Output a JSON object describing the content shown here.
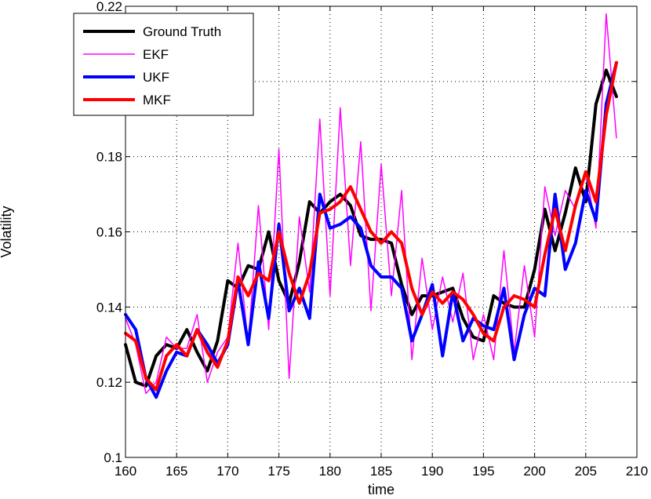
{
  "chart_data": {
    "type": "line",
    "title": "",
    "xlabel": "time",
    "ylabel": "Volatility",
    "xlim": [
      160,
      210
    ],
    "ylim": [
      0.1,
      0.22
    ],
    "xticks": [
      160,
      165,
      170,
      175,
      180,
      185,
      190,
      195,
      200,
      205,
      210
    ],
    "yticks": [
      0.1,
      0.12,
      0.14,
      0.16,
      0.18,
      0.2,
      0.22
    ],
    "ytick_labels": [
      "0.1",
      "0.12",
      "0.14",
      "0.16",
      "0.18",
      "0.2",
      "0.22"
    ],
    "grid": true,
    "legend_position": "top-left",
    "x": [
      160,
      161,
      162,
      163,
      164,
      165,
      166,
      167,
      168,
      169,
      170,
      171,
      172,
      173,
      174,
      175,
      176,
      177,
      178,
      179,
      180,
      181,
      182,
      183,
      184,
      185,
      186,
      187,
      188,
      189,
      190,
      191,
      192,
      193,
      194,
      195,
      196,
      197,
      198,
      199,
      200,
      201,
      202,
      203,
      204,
      205,
      206,
      207,
      208
    ],
    "series": [
      {
        "name": "Ground Truth",
        "color": "#000000",
        "width": 4,
        "values": [
          0.13,
          0.12,
          0.119,
          0.127,
          0.13,
          0.129,
          0.134,
          0.128,
          0.123,
          0.131,
          0.147,
          0.145,
          0.151,
          0.15,
          0.16,
          0.147,
          0.141,
          0.152,
          0.168,
          0.165,
          0.168,
          0.17,
          0.167,
          0.159,
          0.158,
          0.158,
          0.157,
          0.146,
          0.138,
          0.143,
          0.143,
          0.144,
          0.145,
          0.137,
          0.132,
          0.131,
          0.143,
          0.141,
          0.14,
          0.14,
          0.15,
          0.166,
          0.155,
          0.165,
          0.177,
          0.168,
          0.194,
          0.203,
          0.196
        ]
      },
      {
        "name": "EKF",
        "color": "#ff00ff",
        "width": 1.5,
        "values": [
          0.137,
          0.13,
          0.117,
          0.12,
          0.132,
          0.129,
          0.129,
          0.138,
          0.12,
          0.128,
          0.132,
          0.157,
          0.13,
          0.167,
          0.134,
          0.182,
          0.121,
          0.164,
          0.144,
          0.19,
          0.143,
          0.193,
          0.151,
          0.184,
          0.139,
          0.178,
          0.143,
          0.171,
          0.126,
          0.153,
          0.134,
          0.148,
          0.136,
          0.149,
          0.126,
          0.138,
          0.126,
          0.155,
          0.128,
          0.151,
          0.132,
          0.172,
          0.159,
          0.171,
          0.166,
          0.176,
          0.161,
          0.218,
          0.185
        ]
      },
      {
        "name": "UKF",
        "color": "#0000ff",
        "width": 4,
        "values": [
          0.138,
          0.134,
          0.121,
          0.116,
          0.123,
          0.128,
          0.127,
          0.134,
          0.13,
          0.125,
          0.13,
          0.147,
          0.13,
          0.152,
          0.137,
          0.162,
          0.139,
          0.145,
          0.137,
          0.17,
          0.161,
          0.162,
          0.164,
          0.161,
          0.151,
          0.148,
          0.148,
          0.145,
          0.131,
          0.138,
          0.146,
          0.127,
          0.144,
          0.131,
          0.137,
          0.135,
          0.134,
          0.145,
          0.126,
          0.138,
          0.145,
          0.143,
          0.17,
          0.15,
          0.157,
          0.171,
          0.163,
          0.194,
          0.205
        ]
      },
      {
        "name": "MKF",
        "color": "#ff0000",
        "width": 4,
        "values": [
          0.133,
          0.131,
          0.121,
          0.118,
          0.127,
          0.13,
          0.127,
          0.134,
          0.128,
          0.124,
          0.131,
          0.148,
          0.143,
          0.149,
          0.147,
          0.16,
          0.149,
          0.141,
          0.149,
          0.165,
          0.166,
          0.168,
          0.172,
          0.166,
          0.16,
          0.157,
          0.16,
          0.157,
          0.145,
          0.138,
          0.144,
          0.141,
          0.144,
          0.142,
          0.138,
          0.133,
          0.131,
          0.14,
          0.143,
          0.142,
          0.14,
          0.154,
          0.166,
          0.155,
          0.167,
          0.176,
          0.168,
          0.191,
          0.205
        ]
      }
    ]
  }
}
